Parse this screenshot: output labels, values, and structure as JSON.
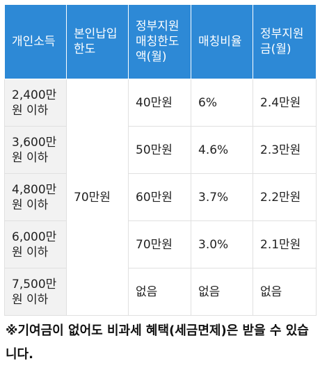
{
  "table": {
    "headers": [
      "개인소득",
      "본인납입한도",
      "정부지원매칭한도액(월)",
      "매칭비율",
      "정부지원금(월)"
    ],
    "self_payment_limit": "70만원",
    "rows": [
      {
        "income": "2,400만원 이하",
        "matching_limit": "40만원",
        "ratio": "6%",
        "support": "2.4만원"
      },
      {
        "income": "3,600만원 이하",
        "matching_limit": "50만원",
        "ratio": "4.6%",
        "support": "2.3만원"
      },
      {
        "income": "4,800만원 이하",
        "matching_limit": "60만원",
        "ratio": "3.7%",
        "support": "2.2만원"
      },
      {
        "income": "6,000만원 이하",
        "matching_limit": "70만원",
        "ratio": "3.0%",
        "support": "2.1만원"
      },
      {
        "income": "7,500만원 이하",
        "matching_limit": "없음",
        "ratio": "없음",
        "support": "없음"
      }
    ]
  },
  "note": "※기여금이 없어도 비과세 혜택(세금면제)은 받을 수 있습니다."
}
